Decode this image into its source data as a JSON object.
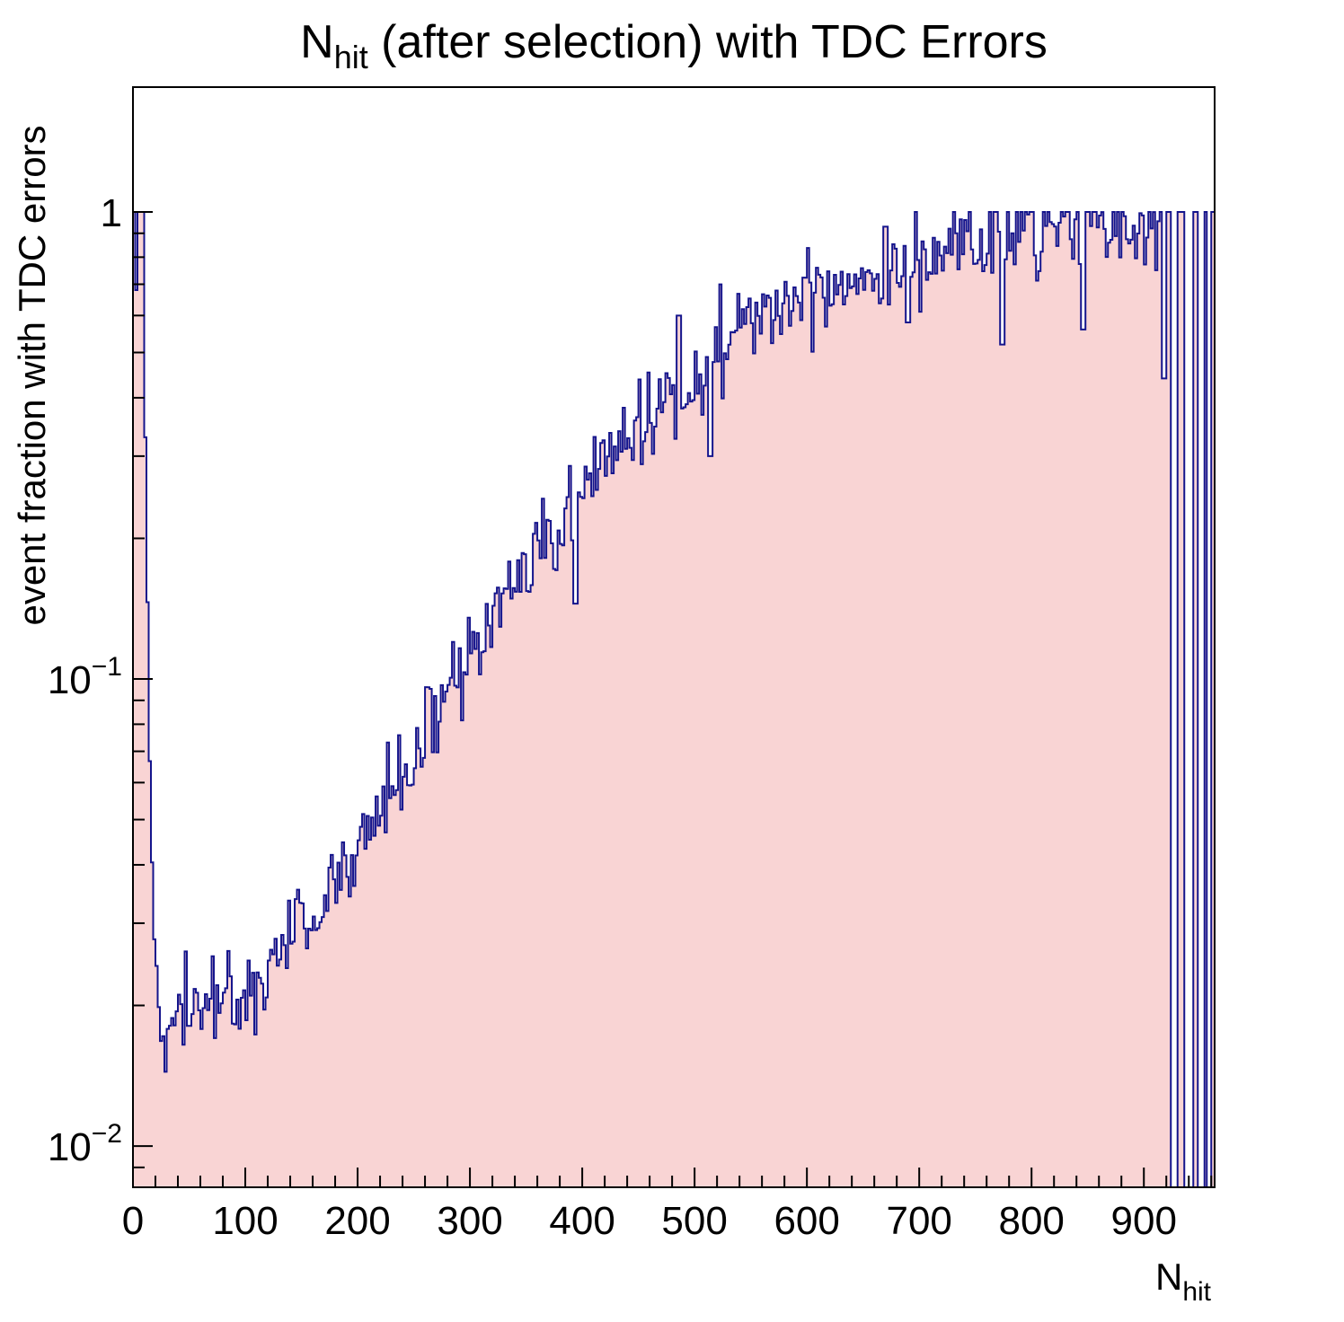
{
  "chart_data": {
    "type": "bar",
    "title": {
      "prefix": "N",
      "sub": "hit",
      "rest": " (after selection) with TDC Errors"
    },
    "xlabel": {
      "prefix": "N",
      "sub": "hit"
    },
    "ylabel": "event fraction with TDC errors",
    "x_range": [
      0,
      963
    ],
    "y_range": [
      0.00816,
      1.85
    ],
    "y_scale": "log",
    "grid": false,
    "legend": "none",
    "bin_width": 2,
    "x_ticks_major": [
      0,
      100,
      200,
      300,
      400,
      500,
      600,
      700,
      800,
      900
    ],
    "x_minor_step": 20,
    "y_ticks_labeled": [
      {
        "value": 1,
        "mantissa": "1",
        "exponent": null
      },
      {
        "value": 0.1,
        "mantissa": "10",
        "exponent": "−1"
      },
      {
        "value": 0.01,
        "mantissa": "10",
        "exponent": "−2"
      }
    ],
    "colors": {
      "fill": "#f9d4d4",
      "line": "#14148c",
      "frame": "#000000",
      "text": "#000000",
      "background": "#ffffff"
    },
    "cap_value": 1.0,
    "left_plateau_end": 9,
    "cap_region_start": 920,
    "empty_bin_ranges": [
      [
        924,
        929
      ],
      [
        937,
        943
      ],
      [
        949,
        953
      ],
      [
        957,
        959
      ]
    ],
    "outliers": [
      [
        3,
        0.68
      ],
      [
        394,
        0.145
      ],
      [
        486,
        0.6
      ],
      [
        514,
        0.3
      ],
      [
        670,
        0.93
      ],
      [
        690,
        0.58
      ],
      [
        774,
        0.52
      ],
      [
        846,
        0.56
      ],
      [
        918,
        0.44
      ]
    ],
    "noise": {
      "seed": 42,
      "sigma_log10": 0.05,
      "sigma_log10_low_x": 0.025,
      "low_x_threshold": 40
    },
    "trend_points": [
      [
        0,
        1.3
      ],
      [
        9,
        1.3
      ],
      [
        10,
        0.55
      ],
      [
        12,
        0.22
      ],
      [
        14,
        0.1
      ],
      [
        16,
        0.055
      ],
      [
        18,
        0.034
      ],
      [
        20,
        0.024
      ],
      [
        24,
        0.019
      ],
      [
        28,
        0.0175
      ],
      [
        34,
        0.017
      ],
      [
        42,
        0.019
      ],
      [
        52,
        0.0205
      ],
      [
        62,
        0.0205
      ],
      [
        72,
        0.02
      ],
      [
        82,
        0.0205
      ],
      [
        92,
        0.021
      ],
      [
        102,
        0.0215
      ],
      [
        112,
        0.0225
      ],
      [
        122,
        0.024
      ],
      [
        132,
        0.026
      ],
      [
        142,
        0.028
      ],
      [
        152,
        0.03
      ],
      [
        162,
        0.032
      ],
      [
        172,
        0.034
      ],
      [
        182,
        0.037
      ],
      [
        192,
        0.04
      ],
      [
        202,
        0.044
      ],
      [
        212,
        0.048
      ],
      [
        222,
        0.053
      ],
      [
        232,
        0.058
      ],
      [
        242,
        0.064
      ],
      [
        252,
        0.07
      ],
      [
        262,
        0.077
      ],
      [
        272,
        0.085
      ],
      [
        282,
        0.094
      ],
      [
        292,
        0.104
      ],
      [
        302,
        0.115
      ],
      [
        312,
        0.125
      ],
      [
        322,
        0.135
      ],
      [
        332,
        0.146
      ],
      [
        342,
        0.158
      ],
      [
        352,
        0.17
      ],
      [
        362,
        0.185
      ],
      [
        372,
        0.2
      ],
      [
        382,
        0.215
      ],
      [
        392,
        0.235
      ],
      [
        402,
        0.255
      ],
      [
        412,
        0.272
      ],
      [
        422,
        0.29
      ],
      [
        432,
        0.31
      ],
      [
        442,
        0.33
      ],
      [
        452,
        0.35
      ],
      [
        462,
        0.37
      ],
      [
        472,
        0.39
      ],
      [
        482,
        0.412
      ],
      [
        492,
        0.438
      ],
      [
        502,
        0.465
      ],
      [
        512,
        0.49
      ],
      [
        522,
        0.515
      ],
      [
        532,
        0.54
      ],
      [
        542,
        0.56
      ],
      [
        552,
        0.58
      ],
      [
        562,
        0.6
      ],
      [
        572,
        0.62
      ],
      [
        582,
        0.64
      ],
      [
        592,
        0.655
      ],
      [
        602,
        0.67
      ],
      [
        622,
        0.7
      ],
      [
        642,
        0.73
      ],
      [
        662,
        0.755
      ],
      [
        682,
        0.78
      ],
      [
        702,
        0.81
      ],
      [
        722,
        0.84
      ],
      [
        742,
        0.865
      ],
      [
        762,
        0.885
      ],
      [
        782,
        0.9
      ],
      [
        802,
        0.915
      ],
      [
        822,
        0.93
      ],
      [
        842,
        0.94
      ],
      [
        862,
        0.95
      ],
      [
        882,
        0.955
      ],
      [
        902,
        0.96
      ],
      [
        922,
        0.965
      ],
      [
        942,
        0.97
      ],
      [
        963,
        0.97
      ]
    ]
  }
}
